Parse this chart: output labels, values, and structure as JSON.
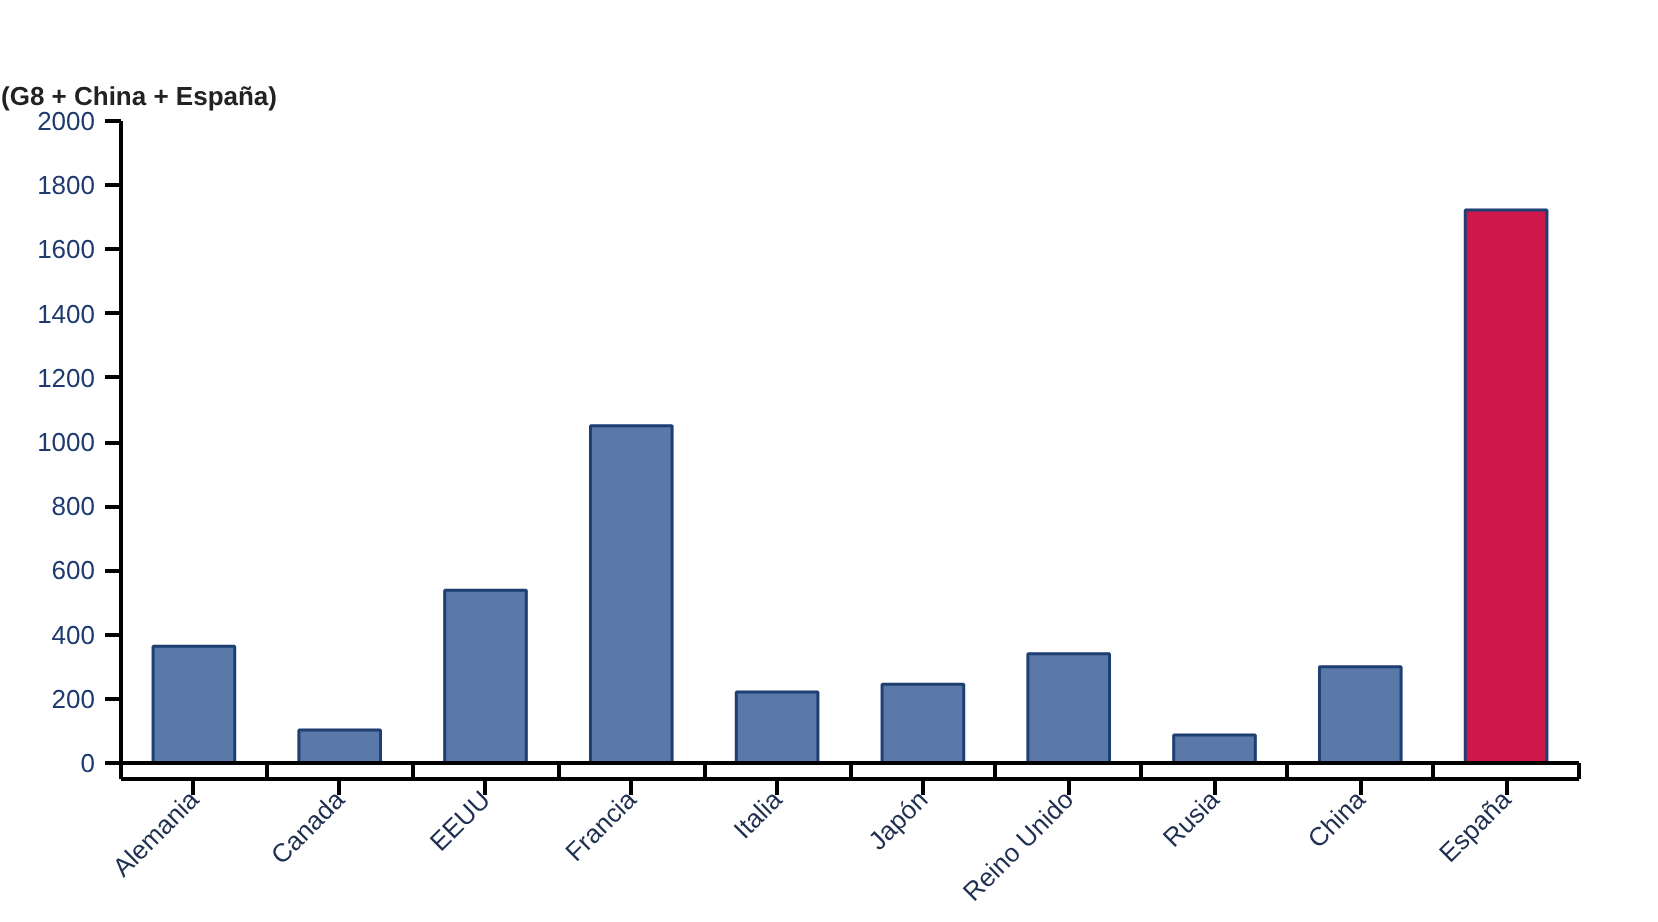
{
  "chart_data": {
    "type": "bar",
    "title": "(G8 + China + España)",
    "categories": [
      "Alemania",
      "Canada",
      "EEUU",
      "Francia",
      "Italia",
      "Japón",
      "Reino Unido",
      "Rusia",
      "China",
      "España"
    ],
    "values": [
      364,
      103,
      538,
      1051,
      221,
      245,
      340,
      87,
      300,
      1723
    ],
    "colors": [
      "#5a78a8",
      "#5a78a8",
      "#5a78a8",
      "#5a78a8",
      "#5a78a8",
      "#5a78a8",
      "#5a78a8",
      "#5a78a8",
      "#5a78a8",
      "#d0174a"
    ],
    "ylim": [
      0,
      2000
    ],
    "yticks": [
      0,
      200,
      400,
      600,
      800,
      1000,
      1200,
      1400,
      1600,
      1800,
      2000
    ],
    "grid": false
  }
}
